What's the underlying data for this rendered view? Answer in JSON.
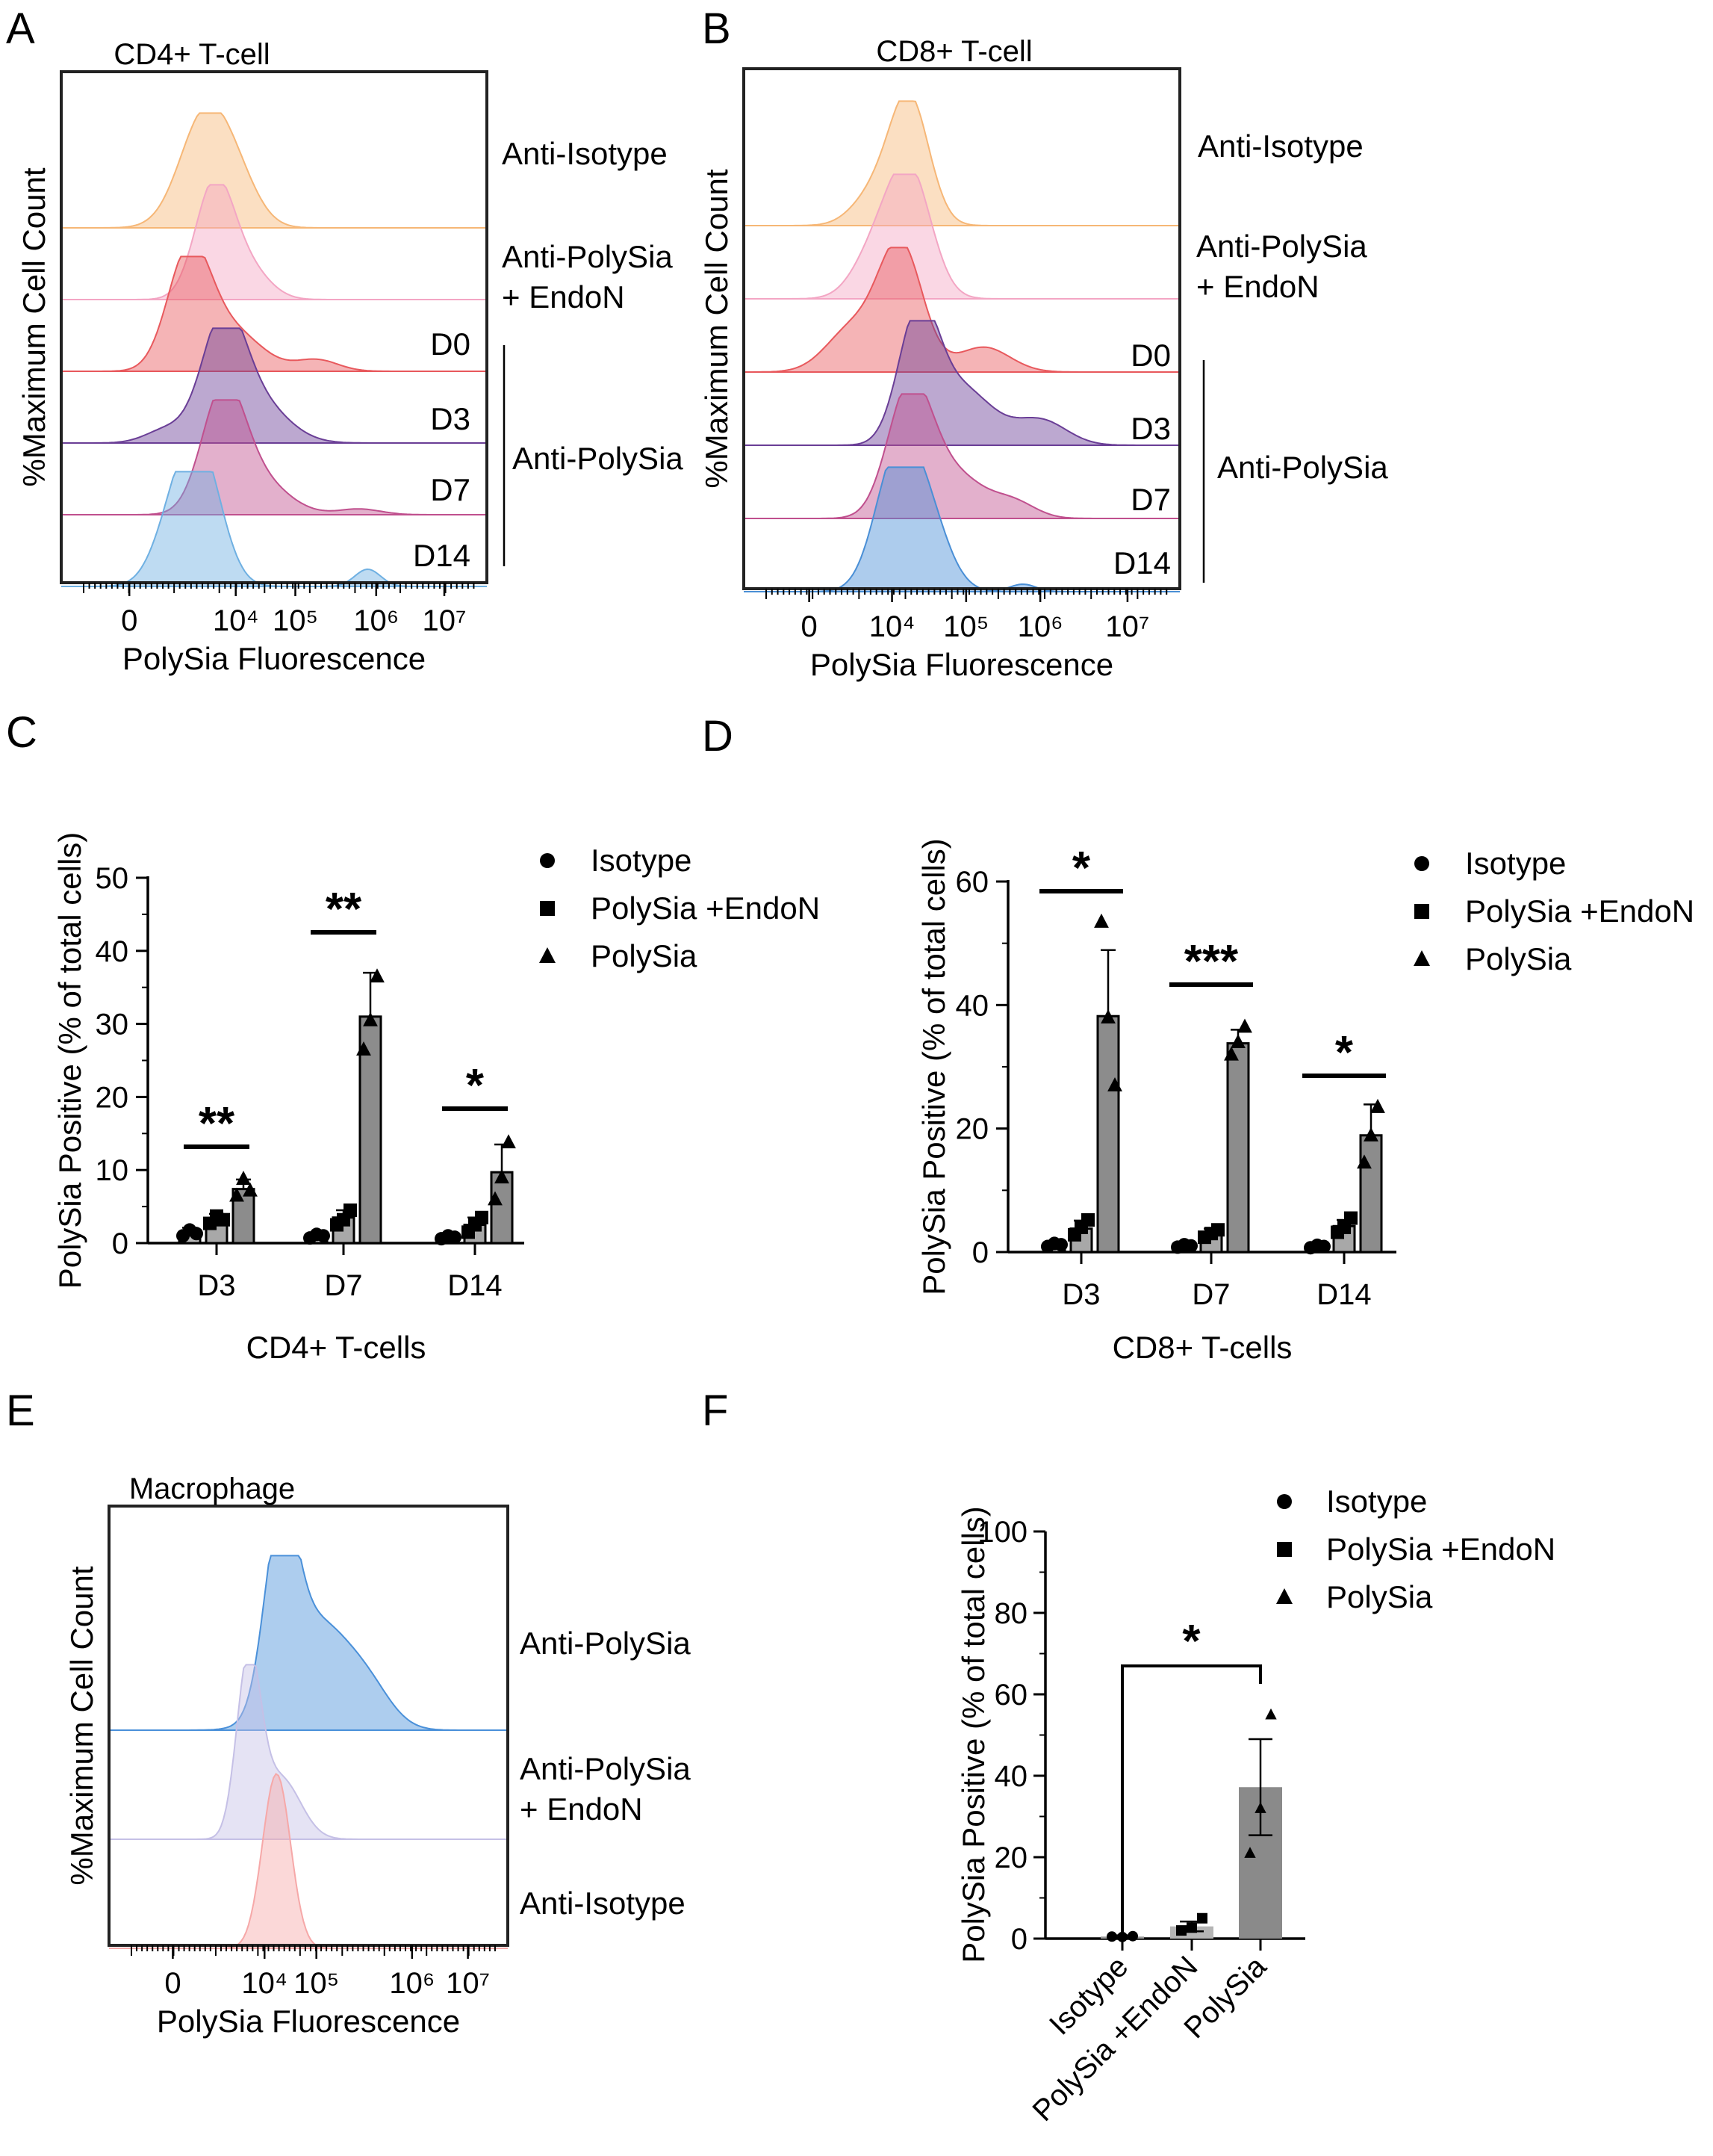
{
  "figure": {
    "panels": {
      "A": "A",
      "B": "B",
      "C": "C",
      "D": "D",
      "E": "E",
      "F": "F"
    }
  },
  "chart_data": [
    {
      "id": "A",
      "type": "histogram-overlay",
      "title": "CD4+ T-cell",
      "ylabel": "%Maximum Cell Count",
      "xlabel": "PolySia Fluorescence",
      "x_tick_labels": [
        "0",
        "10⁴",
        "10⁵",
        "10⁶",
        "10⁷"
      ],
      "tracks": [
        {
          "name": "Anti-Isotype",
          "label_lines": [
            "Anti-Isotype"
          ],
          "color": "#f6b777"
        },
        {
          "name": "Anti-PolySia + EndoN",
          "label_lines": [
            "Anti-PolySia",
            "+ EndoN"
          ],
          "color": "#f3a6c4"
        },
        {
          "name": "D0",
          "label_lines": [
            "D0"
          ],
          "color": "#e8595d"
        },
        {
          "name": "D3",
          "label_lines": [
            "D3"
          ],
          "color": "#6a3e96"
        },
        {
          "name": "D7",
          "label_lines": [
            "D7"
          ],
          "color": "#c0508e"
        },
        {
          "name": "D14",
          "label_lines": [
            "D14"
          ],
          "color": "#6fb0e2"
        }
      ],
      "bracket_label": "Anti-PolySia"
    },
    {
      "id": "B",
      "type": "histogram-overlay",
      "title": "CD8+ T-cell",
      "ylabel": "%Maximum Cell Count",
      "xlabel": "PolySia Fluorescence",
      "x_tick_labels": [
        "0",
        "10⁴",
        "10⁵",
        "10⁶",
        "10⁷"
      ],
      "tracks": [
        {
          "name": "Anti-Isotype",
          "label_lines": [
            "Anti-Isotype"
          ],
          "color": "#f6b777"
        },
        {
          "name": "Anti-PolySia + EndoN",
          "label_lines": [
            "Anti-PolySia",
            "+ EndoN"
          ],
          "color": "#f3a6c4"
        },
        {
          "name": "D0",
          "label_lines": [
            "D0"
          ],
          "color": "#e8595d"
        },
        {
          "name": "D3",
          "label_lines": [
            "D3"
          ],
          "color": "#6a3e96"
        },
        {
          "name": "D7",
          "label_lines": [
            "D7"
          ],
          "color": "#c0508e"
        },
        {
          "name": "D14",
          "label_lines": [
            "D14"
          ],
          "color": "#4a8fd6"
        }
      ],
      "bracket_label": "Anti-PolySia"
    },
    {
      "id": "C",
      "type": "bar",
      "xlabel": "CD4+ T-cells",
      "ylabel": "PolySia Positive (% of total cells)",
      "ylim": [
        0,
        50
      ],
      "yticks": [
        0,
        10,
        20,
        30,
        40,
        50
      ],
      "categories": [
        "D3",
        "D7",
        "D14"
      ],
      "series": [
        {
          "name": "Isotype",
          "marker": "circle",
          "color": "#b8b8b8",
          "values": [
            1.5,
            1.0,
            0.8
          ],
          "err": [
            0.6,
            0.4,
            0.3
          ],
          "points": [
            [
              1.0,
              1.8,
              1.3
            ],
            [
              0.7,
              1.2,
              1.0
            ],
            [
              0.6,
              1.0,
              0.8
            ]
          ]
        },
        {
          "name": "PolySia +EndoN",
          "marker": "square",
          "color": "#a8a8a8",
          "values": [
            3.2,
            3.5,
            2.5
          ],
          "err": [
            0.8,
            1.0,
            1.0
          ],
          "points": [
            [
              2.7,
              3.7,
              3.2
            ],
            [
              2.5,
              3.2,
              4.5
            ],
            [
              1.5,
              2.5,
              3.5
            ]
          ]
        },
        {
          "name": "PolySia",
          "marker": "triangle",
          "color": "#8c8c8c",
          "values": [
            7.4,
            31.0,
            9.7
          ],
          "err": [
            1.3,
            6.0,
            3.8
          ],
          "points": [
            [
              6.5,
              8.8,
              7.2
            ],
            [
              26.5,
              30.5,
              36.5
            ],
            [
              6.0,
              9.0,
              13.8
            ]
          ]
        }
      ],
      "significance": [
        {
          "category": "D3",
          "label": "**"
        },
        {
          "category": "D7",
          "label": "**"
        },
        {
          "category": "D14",
          "label": "*"
        }
      ]
    },
    {
      "id": "D",
      "type": "bar",
      "xlabel": "CD8+ T-cells",
      "ylabel": "PolySia Positive (% of total cells)",
      "ylim": [
        0,
        60
      ],
      "yticks": [
        0,
        20,
        40,
        60
      ],
      "categories": [
        "D3",
        "D7",
        "D14"
      ],
      "series": [
        {
          "name": "Isotype",
          "marker": "circle",
          "color": "#b8b8b8",
          "values": [
            1.2,
            1.0,
            0.9
          ],
          "err": [
            0.4,
            0.3,
            0.3
          ],
          "points": [
            [
              0.9,
              1.4,
              1.2
            ],
            [
              0.8,
              1.2,
              1.0
            ],
            [
              0.7,
              1.1,
              0.9
            ]
          ]
        },
        {
          "name": "PolySia +EndoN",
          "marker": "square",
          "color": "#a8a8a8",
          "values": [
            3.8,
            3.0,
            4.2
          ],
          "err": [
            1.3,
            0.8,
            1.0
          ],
          "points": [
            [
              2.8,
              4.0,
              5.2
            ],
            [
              2.4,
              3.0,
              3.6
            ],
            [
              3.2,
              4.0,
              5.5
            ]
          ]
        },
        {
          "name": "PolySia",
          "marker": "triangle",
          "color": "#8c8c8c",
          "values": [
            38.2,
            33.8,
            18.9
          ],
          "err": [
            10.7,
            2.2,
            5.0
          ],
          "points": [
            [
              53.5,
              38.0,
              27.0
            ],
            [
              32.0,
              34.0,
              36.5
            ],
            [
              14.5,
              18.9,
              23.5
            ]
          ]
        }
      ],
      "significance": [
        {
          "category": "D3",
          "label": "*"
        },
        {
          "category": "D7",
          "label": "***"
        },
        {
          "category": "D14",
          "label": "*"
        }
      ]
    },
    {
      "id": "E",
      "type": "histogram-overlay",
      "title": "Macrophage",
      "ylabel": "%Maximum Cell Count",
      "xlabel": "PolySia Fluorescence",
      "x_tick_labels": [
        "0",
        "10⁴",
        "10⁵",
        "10⁶",
        "10⁷"
      ],
      "tracks": [
        {
          "name": "Anti-PolySia",
          "label_lines": [
            "Anti-PolySia"
          ],
          "color": "#4a90d9"
        },
        {
          "name": "Anti-PolySia + EndoN",
          "label_lines": [
            "Anti-PolySia",
            "+ EndoN"
          ],
          "color": "#c5c0e6"
        },
        {
          "name": "Anti-Isotype",
          "label_lines": [
            "Anti-Isotype"
          ],
          "color": "#f6a8a8"
        }
      ]
    },
    {
      "id": "F",
      "type": "bar",
      "xlabel": "",
      "ylabel": "PolySia Positive (% of total cells)",
      "ylim": [
        0,
        100
      ],
      "yticks": [
        0,
        20,
        40,
        60,
        80,
        100
      ],
      "categories": [
        "Isotype",
        "PolySia +EndoN",
        "PolySia"
      ],
      "values": [
        0.5,
        3.0,
        37.2
      ],
      "err": [
        0.3,
        1.2,
        11.8
      ],
      "colors": [
        "#9a9a9a",
        "#b5b5b5",
        "#8a8a8a"
      ],
      "markers": [
        "circle",
        "square",
        "triangle"
      ],
      "points": [
        [
          0.5,
          0.4,
          0.6
        ],
        [
          2.0,
          2.7,
          5.0
        ],
        [
          21.0,
          32.0,
          55.0
        ]
      ],
      "legend": [
        "Isotype",
        "PolySia +EndoN",
        "PolySia"
      ],
      "significance": [
        {
          "from": "Isotype",
          "to": "PolySia",
          "label": "*"
        }
      ]
    }
  ]
}
